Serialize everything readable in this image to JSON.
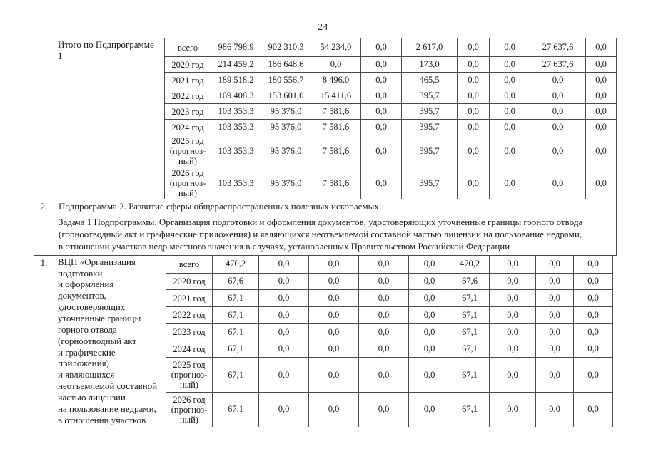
{
  "page_number": "24",
  "table": {
    "top_section": {
      "num": "",
      "title": "Итого по Подпрограмме\n1",
      "rows": [
        {
          "period": "всего",
          "values": [
            "986 798,9",
            "902 310,3",
            "54 234,0",
            "0,0",
            "2 617,0",
            "0,0",
            "0,0",
            "27 637,6",
            "0,0"
          ]
        },
        {
          "period": "2020 год",
          "values": [
            "214 459,2",
            "186 648,6",
            "0,0",
            "0,0",
            "173,0",
            "0,0",
            "0,0",
            "27 637,6",
            "0,0"
          ]
        },
        {
          "period": "2021 год",
          "values": [
            "189 518,2",
            "180 556,7",
            "8 496,0",
            "0,0",
            "465,5",
            "0,0",
            "0,0",
            "0,0",
            "0,0"
          ]
        },
        {
          "period": "2022 год",
          "values": [
            "169 408,3",
            "153 601,0",
            "15 411,6",
            "0,0",
            "395,7",
            "0,0",
            "0,0",
            "0,0",
            "0,0"
          ]
        },
        {
          "period": "2023 год",
          "values": [
            "103 353,3",
            "95 376,0",
            "7 581,6",
            "0,0",
            "395,7",
            "0,0",
            "0,0",
            "0,0",
            "0,0"
          ]
        },
        {
          "period": "2024 год",
          "values": [
            "103 353,3",
            "95 376,0",
            "7 581,6",
            "0,0",
            "395,7",
            "0,0",
            "0,0",
            "0,0",
            "0,0"
          ]
        },
        {
          "period": "2025 год\n(прогноз-\nный)",
          "values": [
            "103 353,3",
            "95 376,0",
            "7 581,6",
            "0,0",
            "395,7",
            "0,0",
            "0,0",
            "0,0",
            "0,0"
          ]
        },
        {
          "period": "2026 год\n(прогноз-\nный)",
          "values": [
            "103 353,3",
            "95 376,0",
            "7 581,6",
            "0,0",
            "395,7",
            "0,0",
            "0,0",
            "0,0",
            "0,0"
          ]
        }
      ]
    },
    "subprogram_row": {
      "num": "2.",
      "text": "Подпрограмма 2. Развитие сферы общераспространенных полезных ископаемых"
    },
    "task_row": {
      "num": "",
      "text": "Задача 1 Подпрограммы. Организация подготовки и оформления документов, удостоверяющих уточненные границы горного отвода\n(горноотводный акт и графические приложения) и являющихся неотъемлемой составной частью лицензии на пользование недрами,\nв отношении участков недр местного значения в случаях, установленных Правительством Российской Федерации"
    },
    "vcp_section": {
      "num": "1.",
      "title": "ВЦП «Организация\nподготовки\nи оформления\nдокументов,\nудостоверяющих\nуточненные границы\nгорного отвода\n(горноотводный акт\nи графические\nприложения)\nи являющихся\nнеотъемлемой составной\nчастью лицензии\nна пользование недрами,\nв отношении участков",
      "rows": [
        {
          "period": "всего",
          "values": [
            "470,2",
            "0,0",
            "0,0",
            "0,0",
            "0,0",
            "470,2",
            "0,0",
            "0,0",
            "0,0"
          ]
        },
        {
          "period": "2020 год",
          "values": [
            "67,6",
            "0,0",
            "0,0",
            "0,0",
            "0,0",
            "67,6",
            "0,0",
            "0,0",
            "0,0"
          ]
        },
        {
          "period": "2021 год",
          "values": [
            "67,1",
            "0,0",
            "0,0",
            "0,0",
            "0,0",
            "67,1",
            "0,0",
            "0,0",
            "0,0"
          ]
        },
        {
          "period": "2022 год",
          "values": [
            "67,1",
            "0,0",
            "0,0",
            "0,0",
            "0,0",
            "67,1",
            "0,0",
            "0,0",
            "0,0"
          ]
        },
        {
          "period": "2023 год",
          "values": [
            "67,1",
            "0,0",
            "0,0",
            "0,0",
            "0,0",
            "67,1",
            "0,0",
            "0,0",
            "0,0"
          ]
        },
        {
          "period": "2024 год",
          "values": [
            "67,1",
            "0,0",
            "0,0",
            "0,0",
            "0,0",
            "67,1",
            "0,0",
            "0,0",
            "0,0"
          ]
        },
        {
          "period": "2025 год\n(прогноз-\nный)",
          "values": [
            "67,1",
            "0,0",
            "0,0",
            "0,0",
            "0,0",
            "67,1",
            "0,0",
            "0,0",
            "0,0"
          ]
        },
        {
          "period": "2026 год\n(прогноз-\nный)",
          "values": [
            "67,1",
            "0,0",
            "0,0",
            "0,0",
            "0,0",
            "67,1",
            "0,0",
            "0,0",
            "0,0"
          ]
        }
      ]
    }
  }
}
